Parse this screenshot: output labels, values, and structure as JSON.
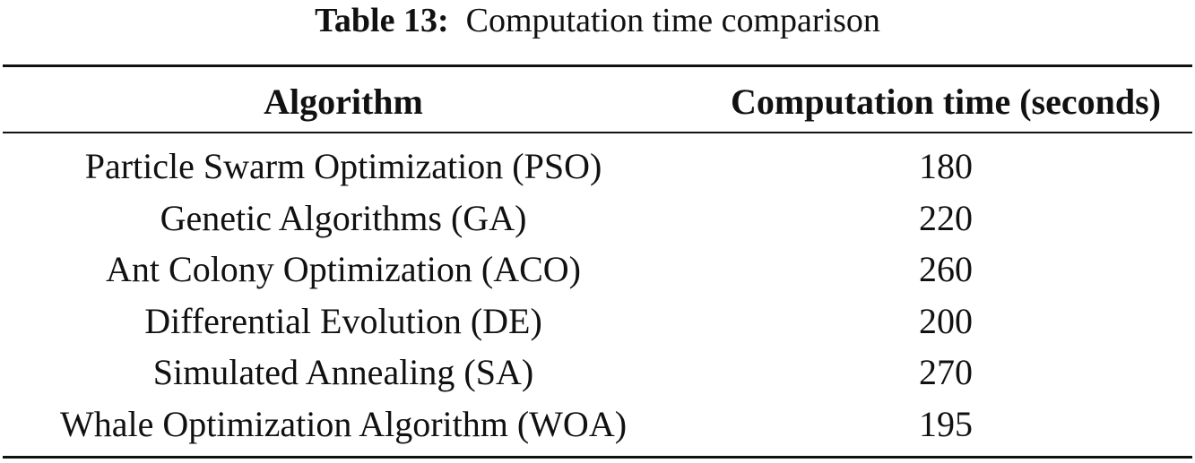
{
  "caption": {
    "label": "Table 13:",
    "text": "Computation time comparison"
  },
  "table": {
    "headers": [
      "Algorithm",
      "Computation time (seconds)"
    ],
    "rows": [
      [
        "Particle Swarm Optimization (PSO)",
        "180"
      ],
      [
        "Genetic Algorithms (GA)",
        "220"
      ],
      [
        "Ant Colony Optimization (ACO)",
        "260"
      ],
      [
        "Differential Evolution (DE)",
        "200"
      ],
      [
        "Simulated Annealing (SA)",
        "270"
      ],
      [
        "Whale Optimization Algorithm (WOA)",
        "195"
      ]
    ]
  }
}
